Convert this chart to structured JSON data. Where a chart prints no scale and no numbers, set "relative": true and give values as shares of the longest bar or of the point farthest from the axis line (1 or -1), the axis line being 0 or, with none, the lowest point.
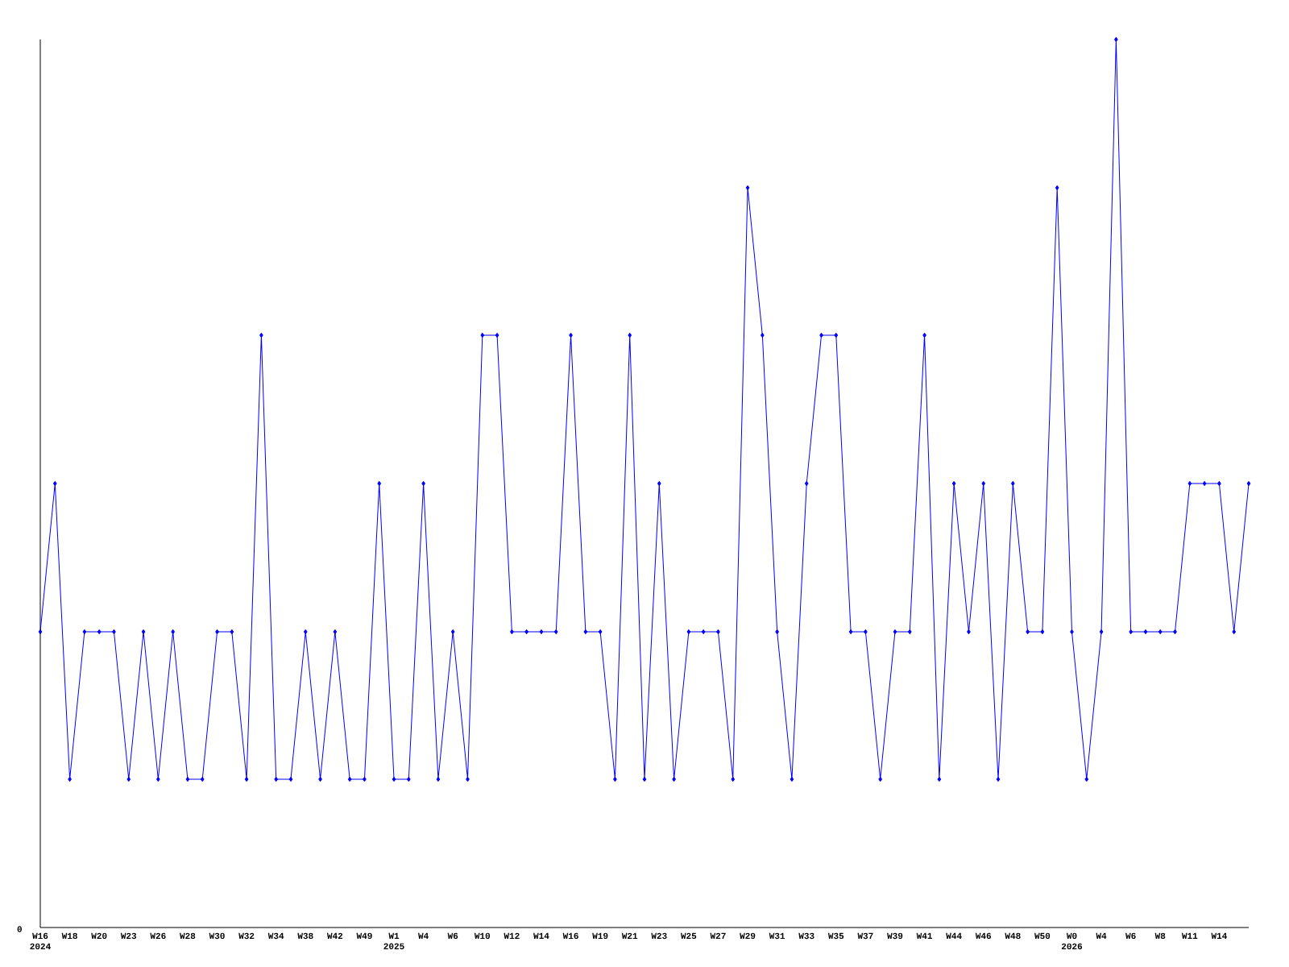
{
  "chart_data": {
    "type": "line",
    "relative": true,
    "color": "#0000ff",
    "marker": "diamond",
    "categories": [
      "W16 2024",
      null,
      "W18",
      null,
      "W20",
      null,
      "W23",
      null,
      "W26",
      null,
      "W28",
      null,
      "W30",
      null,
      "W32",
      null,
      "W34",
      null,
      "W38",
      null,
      "W42",
      null,
      "W49",
      null,
      "W1 2025",
      null,
      "W4",
      null,
      "W6",
      null,
      "W10",
      null,
      "W12",
      null,
      "W14",
      null,
      "W16",
      null,
      "W19",
      null,
      "W21",
      null,
      "W23",
      null,
      "W25",
      null,
      "W27",
      null,
      "W29",
      null,
      "W31",
      null,
      "W33",
      null,
      "W35",
      null,
      "W37",
      null,
      "W39",
      null,
      "W41",
      null,
      "W44",
      null,
      "W46",
      null,
      "W48",
      null,
      "W50",
      null,
      "W0 2026",
      null,
      "W4",
      null,
      "W6",
      null,
      "W8",
      null,
      "W11",
      null,
      "W14",
      null,
      null
    ],
    "values": [
      0.333,
      0.5,
      0.167,
      0.333,
      0.333,
      0.333,
      0.167,
      0.333,
      0.167,
      0.333,
      0.167,
      0.167,
      0.333,
      0.333,
      0.167,
      0.667,
      0.167,
      0.167,
      0.333,
      0.167,
      0.333,
      0.167,
      0.167,
      0.5,
      0.167,
      0.167,
      0.5,
      0.167,
      0.333,
      0.167,
      0.667,
      0.667,
      0.333,
      0.333,
      0.333,
      0.333,
      0.667,
      0.333,
      0.333,
      0.167,
      0.667,
      0.167,
      0.5,
      0.167,
      0.333,
      0.333,
      0.333,
      0.167,
      0.833,
      0.667,
      0.333,
      0.167,
      0.5,
      0.667,
      0.667,
      0.333,
      0.333,
      0.167,
      0.333,
      0.333,
      0.667,
      0.167,
      0.5,
      0.333,
      0.5,
      0.167,
      0.5,
      0.333,
      0.333,
      0.833,
      0.333,
      0.167,
      0.333,
      1,
      0.333,
      0.333,
      0.333,
      0.333,
      0.5,
      0.5,
      0.5,
      0.333,
      0.5
    ],
    "annotations": [
      "0"
    ]
  }
}
